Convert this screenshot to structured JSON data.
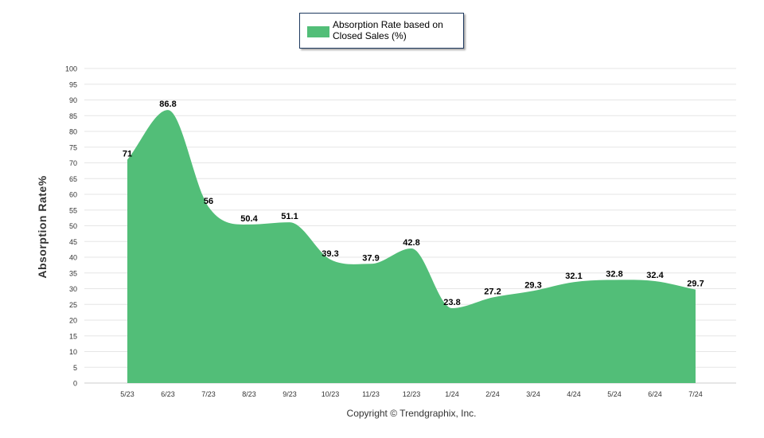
{
  "legend": {
    "label": "Absorption Rate based on Closed Sales (%)"
  },
  "copyright": "Copyright © Trendgraphix, Inc.",
  "colors": {
    "area": "#52be78",
    "grid": "#e6e6e6",
    "axis_text": "#333333"
  },
  "chart_data": {
    "type": "area",
    "title": "",
    "xlabel": "",
    "ylabel": "Absorption Rate%",
    "ylim": [
      0,
      100
    ],
    "ytick_step": 5,
    "grid": true,
    "legend_position": "top-center",
    "categories": [
      "5/23",
      "6/23",
      "7/23",
      "8/23",
      "9/23",
      "10/23",
      "11/23",
      "12/23",
      "1/24",
      "2/24",
      "3/24",
      "4/24",
      "5/24",
      "6/24",
      "7/24"
    ],
    "series": [
      {
        "name": "Absorption Rate based on Closed Sales (%)",
        "values": [
          71,
          86.8,
          56,
          50.4,
          51.1,
          39.3,
          37.9,
          42.8,
          23.8,
          27.2,
          29.3,
          32.1,
          32.8,
          32.4,
          29.7
        ],
        "data_labels": [
          "71",
          "86.8",
          "56",
          "50.4",
          "51.1",
          "39.3",
          "37.9",
          "42.8",
          "23.8",
          "27.2",
          "29.3",
          "32.1",
          "32.8",
          "32.4",
          "29.7"
        ]
      }
    ]
  }
}
